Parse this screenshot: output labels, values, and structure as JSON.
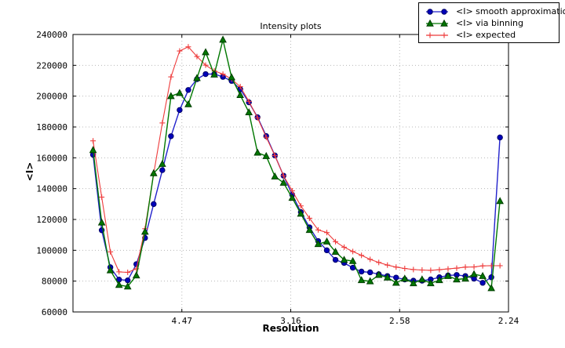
{
  "figure": {
    "title": "Intensity plots",
    "xlabel": "Resolution",
    "ylabel": "<I>"
  },
  "legend": {
    "position": "upper-right-outside",
    "items": [
      {
        "label": "<I> smooth approximation",
        "marker": "circle"
      },
      {
        "label": "<I> via binning",
        "marker": "triangle"
      },
      {
        "label": "<I> expected",
        "marker": "plus"
      }
    ]
  },
  "chart_data": {
    "type": "line",
    "title": "Intensity plots",
    "xlabel": "Resolution",
    "ylabel": "<I>",
    "grid": "dotted gray, both axes",
    "legend_position": "upper right, partly outside axes",
    "x_axis": {
      "unit": "1/d^2 (resolution, labels show d in Angstrom)",
      "min": 0.0,
      "max": 0.2,
      "ticks": [
        {
          "value": 0.05,
          "label": "4.47"
        },
        {
          "value": 0.1,
          "label": "3.16"
        },
        {
          "value": 0.15,
          "label": "2.58"
        },
        {
          "value": 0.2,
          "label": "2.24"
        }
      ]
    },
    "y_axis": {
      "min": 60000,
      "max": 240000,
      "tick_step": 20000,
      "ticks": [
        60000,
        80000,
        100000,
        120000,
        140000,
        160000,
        180000,
        200000,
        220000,
        240000
      ],
      "tick_labels": [
        "60000",
        "80000",
        "100000",
        "120000",
        "140000",
        "160000",
        "180000",
        "200000",
        "220000",
        "240000"
      ]
    },
    "x": [
      0.00922,
      0.0132,
      0.01717,
      0.02115,
      0.02512,
      0.0291,
      0.03308,
      0.03705,
      0.04103,
      0.045,
      0.04898,
      0.05296,
      0.05693,
      0.06091,
      0.06488,
      0.06886,
      0.07284,
      0.07681,
      0.08079,
      0.08476,
      0.08874,
      0.09272,
      0.09669,
      0.10067,
      0.10464,
      0.10862,
      0.1126,
      0.11657,
      0.12055,
      0.12452,
      0.1285,
      0.13248,
      0.13645,
      0.14043,
      0.1444,
      0.14838,
      0.15236,
      0.15633,
      0.16031,
      0.16428,
      0.16826,
      0.17224,
      0.17621,
      0.18019,
      0.18416,
      0.18814,
      0.19212,
      0.19609
    ],
    "series": [
      {
        "name": "<I> smooth approximation",
        "marker": "circle",
        "color": "#2222cc",
        "marker_fill": "#0000bb",
        "marker_edge": "#000066",
        "values": [
          162000,
          113000,
          89000,
          81000,
          80500,
          91000,
          108000,
          130000,
          152000,
          174000,
          191000,
          204000,
          211000,
          214300,
          214300,
          212500,
          209900,
          204500,
          196000,
          186300,
          174100,
          161500,
          148400,
          136100,
          124800,
          114900,
          106000,
          100000,
          93800,
          91800,
          88700,
          86200,
          85700,
          84500,
          83300,
          82300,
          81100,
          80300,
          80300,
          81100,
          82500,
          83700,
          84000,
          83300,
          81600,
          78900,
          82500,
          173200
        ]
      },
      {
        "name": "<I> via binning",
        "marker": "triangle",
        "color": "#007700",
        "marker_fill": "#007700",
        "marker_edge": "#003d00",
        "values": [
          165000,
          118000,
          87000,
          77500,
          76500,
          83700,
          112000,
          150000,
          156000,
          200000,
          202000,
          194700,
          211700,
          228500,
          214000,
          236600,
          212200,
          200700,
          189500,
          163300,
          161100,
          147900,
          143800,
          134000,
          123700,
          113200,
          104000,
          105700,
          99000,
          93800,
          93000,
          80600,
          79900,
          84000,
          82300,
          78900,
          81600,
          78600,
          81100,
          78600,
          80600,
          83300,
          81100,
          81600,
          84500,
          83300,
          75400,
          131900
        ]
      },
      {
        "name": "<I> expected",
        "marker": "plus",
        "color": "#ee3b3b",
        "marker_fill": "none",
        "marker_edge": "#ee3b3b",
        "values": [
          171000,
          134500,
          99000,
          86000,
          85700,
          88000,
          114000,
          149600,
          182600,
          212500,
          229300,
          232000,
          225700,
          220100,
          216400,
          214300,
          211000,
          206200,
          196600,
          185900,
          173300,
          161400,
          148400,
          138600,
          128800,
          120800,
          113200,
          111500,
          105600,
          102000,
          99200,
          96700,
          94100,
          92100,
          90400,
          89100,
          88200,
          87500,
          87200,
          87000,
          87400,
          87900,
          88400,
          89100,
          89200,
          89900,
          90000,
          90000
        ]
      }
    ]
  }
}
